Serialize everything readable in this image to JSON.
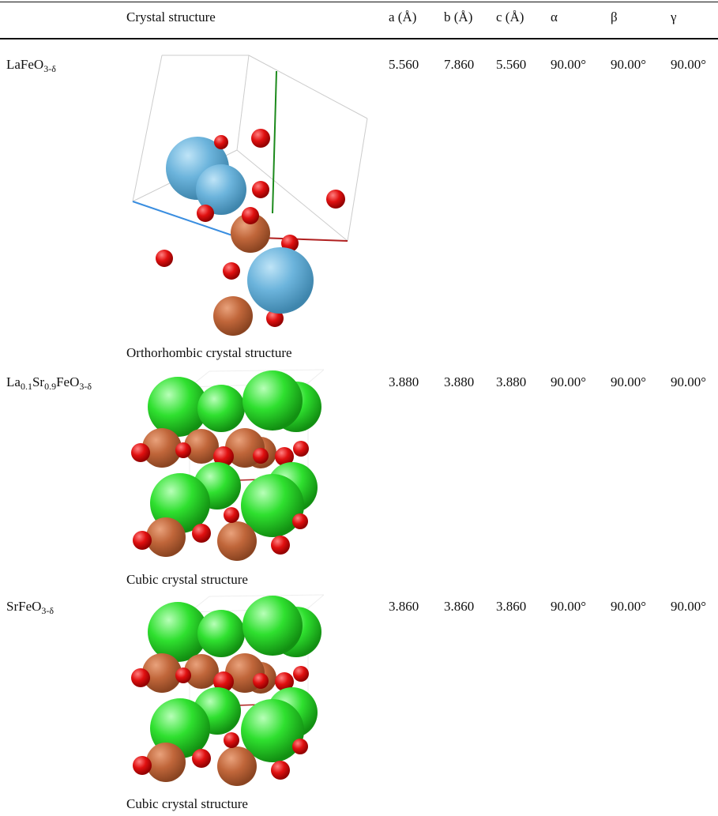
{
  "table": {
    "header": [
      "Crystal structure",
      "a (Å)",
      "b (Å)",
      "c (Å)",
      "α",
      "β",
      "γ"
    ],
    "rows": [
      {
        "compound": [
          {
            "text": "LaFeO"
          },
          {
            "sub": "3-δ"
          }
        ],
        "caption": "Orthorhombic crystal structure",
        "cells": [
          "5.560",
          "7.860",
          "5.560",
          "90.00°",
          "90.00°",
          "90.00°"
        ]
      },
      {
        "compound": [
          {
            "text": "La"
          },
          {
            "sub": "0.1"
          },
          {
            "text": "Sr"
          },
          {
            "sub": "0.9"
          },
          {
            "text": "FeO"
          },
          {
            "sub": "3-δ"
          }
        ],
        "caption": "Cubic crystal structure",
        "cells": [
          "3.880",
          "3.880",
          "3.880",
          "90.00°",
          "90.00°",
          "90.00°"
        ]
      },
      {
        "compound": [
          {
            "text": "SrFeO"
          },
          {
            "sub": "3-δ"
          }
        ],
        "caption": "Cubic crystal structure",
        "cells": [
          "3.860",
          "3.860",
          "3.860",
          "90.00°",
          "90.00°",
          "90.00°"
        ]
      }
    ]
  }
}
